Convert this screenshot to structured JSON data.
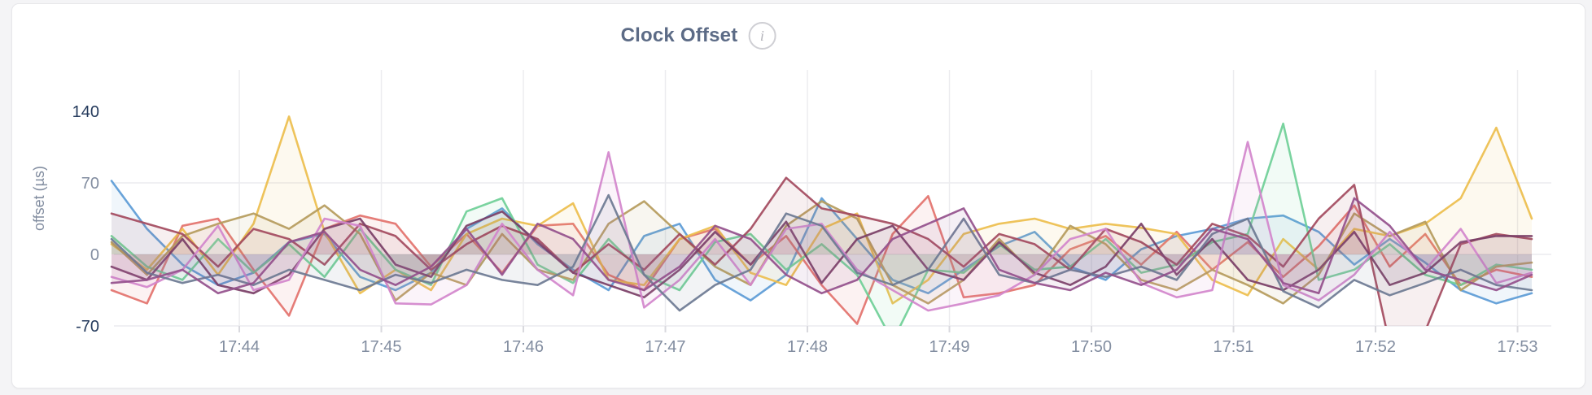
{
  "panel": {
    "title": "Clock Offset",
    "info_glyph": "i"
  },
  "colors": {
    "page_background": "#f4f4f6",
    "panel_background": "#ffffff",
    "panel_border": "#e7e7ea",
    "gridline": "#ececef",
    "axis_label_strong": "#243a5c",
    "axis_label_muted": "#828da0",
    "title_text": "#5c6b86",
    "info_icon_ring": "#cfcfd4"
  },
  "chart_data": {
    "type": "line",
    "title": "Clock Offset",
    "xlabel": "",
    "ylabel": "offset (µs)",
    "ylim": [
      -70,
      140
    ],
    "grid": true,
    "legend": "none",
    "yticks": [
      {
        "value": 140,
        "strong": true,
        "grid": false
      },
      {
        "value": 70,
        "strong": false,
        "grid": true
      },
      {
        "value": 0,
        "strong": false,
        "grid": true
      },
      {
        "value": -70,
        "strong": true,
        "grid": true
      }
    ],
    "xticks": [
      {
        "label": "17:44",
        "minute": 1
      },
      {
        "label": "17:45",
        "minute": 2
      },
      {
        "label": "17:46",
        "minute": 3
      },
      {
        "label": "17:47",
        "minute": 4
      },
      {
        "label": "17:48",
        "minute": 5
      },
      {
        "label": "17:49",
        "minute": 6
      },
      {
        "label": "17:50",
        "minute": 7
      },
      {
        "label": "17:51",
        "minute": 8
      },
      {
        "label": "17:52",
        "minute": 9
      },
      {
        "label": "17:53",
        "minute": 10
      }
    ],
    "x_start_minute": 0.1,
    "x_step_minute": 0.25,
    "series": [
      {
        "name": "blue",
        "color": "#5C9BD6",
        "values": [
          72,
          25,
          -10,
          -30,
          -18,
          12,
          20,
          -22,
          -35,
          -18,
          25,
          45,
          10,
          -15,
          -35,
          18,
          30,
          -25,
          -45,
          -20,
          55,
          15,
          -25,
          -38,
          -15,
          8,
          22,
          -12,
          -25,
          5,
          18,
          25,
          35,
          38,
          22,
          -10,
          15,
          -8,
          -35,
          -48,
          -38
        ]
      },
      {
        "name": "salmon",
        "color": "#E3726C",
        "values": [
          -35,
          -48,
          28,
          35,
          -15,
          -60,
          25,
          38,
          30,
          -12,
          20,
          -18,
          28,
          30,
          -20,
          -35,
          15,
          25,
          -10,
          18,
          -30,
          -68,
          20,
          57,
          -42,
          -38,
          -30,
          5,
          18,
          -10,
          22,
          -15,
          12,
          -22,
          8,
          48,
          -12,
          20,
          -30,
          -15,
          -22
        ]
      },
      {
        "name": "gold",
        "color": "#EDBE4D",
        "values": [
          10,
          -15,
          25,
          -20,
          30,
          135,
          22,
          -38,
          -15,
          -35,
          20,
          35,
          28,
          50,
          -25,
          -30,
          15,
          28,
          -18,
          -30,
          25,
          40,
          -48,
          -25,
          20,
          30,
          35,
          25,
          30,
          26,
          20,
          -25,
          -40,
          15,
          -15,
          25,
          18,
          30,
          55,
          124,
          35
        ]
      },
      {
        "name": "green",
        "color": "#6FCF97",
        "values": [
          18,
          -12,
          -25,
          15,
          -18,
          10,
          -22,
          25,
          -15,
          -30,
          42,
          55,
          -10,
          -28,
          15,
          -20,
          -35,
          12,
          20,
          -15,
          10,
          -20,
          -85,
          -15,
          -18,
          10,
          -15,
          -12,
          15,
          -18,
          -10,
          12,
          20,
          128,
          -25,
          -15,
          10,
          -20,
          -30,
          -10,
          -15
        ]
      },
      {
        "name": "khaki",
        "color": "#B59B5C",
        "values": [
          12,
          -20,
          18,
          30,
          40,
          25,
          48,
          20,
          -45,
          -18,
          -30,
          20,
          -15,
          -25,
          30,
          52,
          20,
          -12,
          -30,
          28,
          52,
          35,
          -30,
          -48,
          -25,
          15,
          -20,
          28,
          10,
          -25,
          -35,
          -15,
          -30,
          -48,
          -20,
          40,
          18,
          32,
          -35,
          -12,
          -8
        ]
      },
      {
        "name": "maroon",
        "color": "#A34A5E",
        "values": [
          40,
          30,
          20,
          -12,
          25,
          15,
          -10,
          30,
          18,
          -15,
          10,
          28,
          15,
          -18,
          10,
          -15,
          20,
          -10,
          25,
          75,
          45,
          38,
          30,
          15,
          -12,
          20,
          10,
          -15,
          25,
          12,
          -10,
          30,
          18,
          -12,
          35,
          68,
          -88,
          -75,
          10,
          20,
          15
        ]
      },
      {
        "name": "plum",
        "color": "#7A3E66",
        "values": [
          -12,
          -25,
          15,
          -30,
          -38,
          -20,
          25,
          35,
          -10,
          -22,
          28,
          42,
          12,
          -18,
          -30,
          -42,
          -15,
          22,
          -10,
          32,
          -28,
          15,
          28,
          -15,
          -25,
          12,
          -18,
          -30,
          -12,
          30,
          -20,
          15,
          -25,
          -35,
          -15,
          22,
          -30,
          -18,
          12,
          18,
          18
        ]
      },
      {
        "name": "orchid",
        "color": "#D386CC",
        "values": [
          -22,
          -32,
          -15,
          28,
          -35,
          -25,
          35,
          28,
          -48,
          -49,
          -30,
          30,
          -15,
          -40,
          100,
          -52,
          -25,
          15,
          -30,
          25,
          30,
          -15,
          -35,
          -55,
          -48,
          -40,
          -20,
          15,
          25,
          -28,
          -42,
          -35,
          110,
          -30,
          -45,
          -20,
          22,
          -15,
          25,
          -28,
          -18
        ]
      },
      {
        "name": "slate",
        "color": "#6C7A93",
        "values": [
          15,
          -18,
          -28,
          -20,
          -30,
          -15,
          -25,
          -35,
          -20,
          -28,
          -15,
          -25,
          -30,
          -12,
          58,
          -20,
          -55,
          -30,
          -15,
          40,
          28,
          -18,
          -30,
          -15,
          35,
          -20,
          -28,
          -15,
          -22,
          -12,
          -25,
          20,
          35,
          -36,
          -52,
          -25,
          -40,
          -28,
          -15,
          -30,
          -35
        ]
      },
      {
        "name": "violet",
        "color": "#94508C",
        "values": [
          -28,
          -25,
          -15,
          -38,
          -28,
          12,
          22,
          -15,
          -30,
          -12,
          25,
          -20,
          30,
          15,
          -25,
          -35,
          -12,
          28,
          15,
          -20,
          -38,
          -25,
          15,
          30,
          45,
          -15,
          -28,
          -35,
          -18,
          -30,
          -15,
          25,
          15,
          -28,
          -38,
          55,
          28,
          -15,
          -25,
          -35,
          -20
        ]
      }
    ]
  }
}
